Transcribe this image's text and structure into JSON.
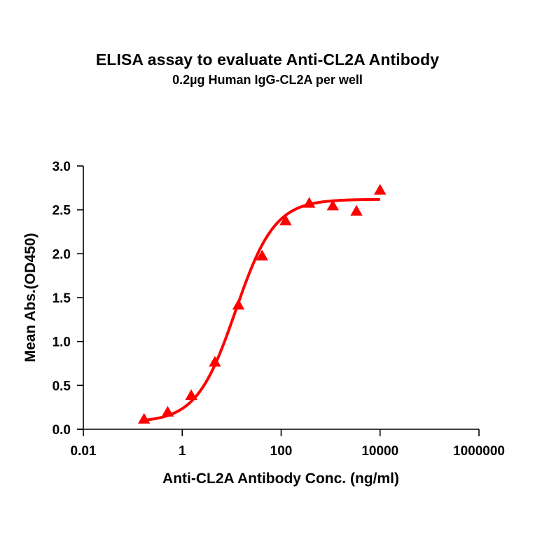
{
  "header": {
    "title": "ELISA assay to evaluate Anti-CL2A Antibody",
    "subtitle": "0.2µg Human IgG-CL2A per well"
  },
  "colors": {
    "series": "#ff0000",
    "axis": "#000000",
    "background": "#ffffff"
  },
  "chart_data": {
    "type": "scatter",
    "title": "ELISA assay to evaluate Anti-CL2A Antibody",
    "subtitle": "0.2µg Human IgG-CL2A per well",
    "xlabel": "Anti-CL2A Antibody Conc. (ng/ml)",
    "ylabel": "Mean Abs.(OD450)",
    "xscale": "log",
    "xlim": [
      0.01,
      1000000
    ],
    "ylim": [
      0.0,
      3.0
    ],
    "xticks": [
      "0.01",
      "1",
      "100",
      "10000",
      "1000000"
    ],
    "yticks": [
      "0.0",
      "0.5",
      "1.0",
      "1.5",
      "2.0",
      "2.5",
      "3.0"
    ],
    "grid": false,
    "legend": null,
    "series": [
      {
        "name": "Anti-CL2A Antibody",
        "marker": "triangle",
        "color": "#ff0000",
        "x": [
          0.169,
          0.508,
          1.52,
          4.57,
          13.7,
          41.2,
          123,
          370,
          1111,
          3333,
          10000
        ],
        "y": [
          0.11,
          0.19,
          0.38,
          0.76,
          1.41,
          1.97,
          2.37,
          2.57,
          2.54,
          2.48,
          2.72
        ]
      }
    ],
    "fit": {
      "model": "4PL",
      "bottom": 0.08,
      "top": 2.62,
      "ec50": 12,
      "hill": 1.1,
      "x_range": [
        0.169,
        10000
      ]
    }
  }
}
